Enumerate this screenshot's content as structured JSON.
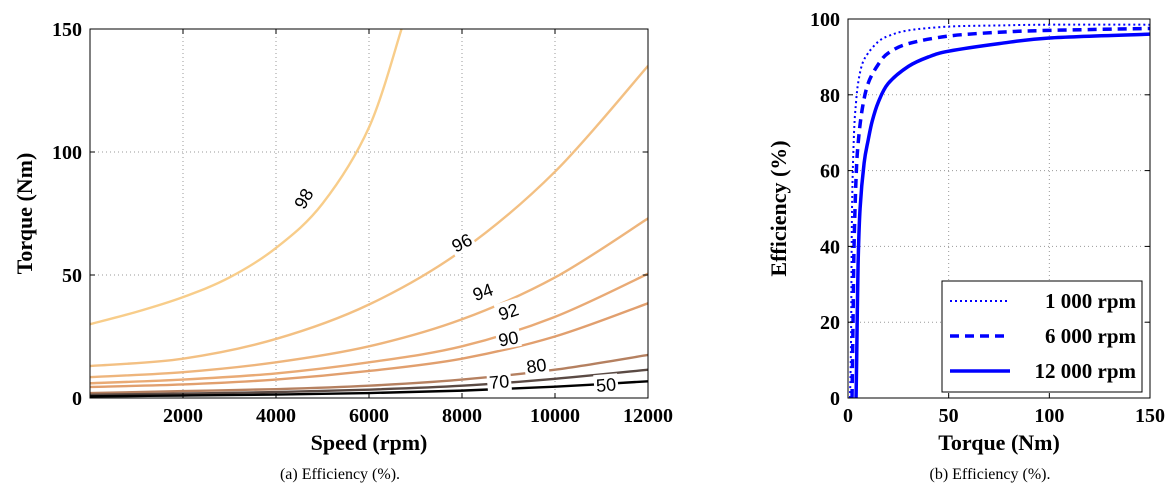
{
  "chart_data": [
    {
      "type": "contour",
      "caption": "(a) Efficiency (%).",
      "xlabel": "Speed (rpm)",
      "ylabel": "Torque (Nm)",
      "xlim": [
        0,
        12000
      ],
      "ylim": [
        0,
        150
      ],
      "xticks": [
        2000,
        4000,
        6000,
        8000,
        10000,
        12000
      ],
      "yticks": [
        0,
        50,
        100,
        150
      ],
      "xtick_labels": [
        "2000",
        "4000",
        "6000",
        "8000",
        "10000",
        "12000"
      ],
      "ytick_labels": [
        "0",
        "50",
        "100",
        "150"
      ],
      "grid": true,
      "levels": [
        {
          "level": "98",
          "color": "#f8cd8a",
          "points": [
            [
              0,
              30
            ],
            [
              1000,
              35
            ],
            [
              2000,
              41
            ],
            [
              3000,
              49
            ],
            [
              4000,
              61
            ],
            [
              5000,
              79
            ],
            [
              6000,
              110
            ],
            [
              6700,
              150
            ]
          ]
        },
        {
          "level": "96",
          "color": "#f3c083",
          "points": [
            [
              0,
              13
            ],
            [
              2000,
              16
            ],
            [
              4000,
              24
            ],
            [
              6000,
              38
            ],
            [
              8000,
              60
            ],
            [
              10000,
              92
            ],
            [
              12000,
              135
            ]
          ]
        },
        {
          "level": "94",
          "color": "#eeb57c",
          "points": [
            [
              0,
              8.5
            ],
            [
              2000,
              10.5
            ],
            [
              4000,
              14.5
            ],
            [
              6000,
              21
            ],
            [
              8000,
              32
            ],
            [
              10000,
              49
            ],
            [
              12000,
              73
            ]
          ]
        },
        {
          "level": "92",
          "color": "#e9aa75",
          "points": [
            [
              0,
              6
            ],
            [
              2000,
              7.5
            ],
            [
              4000,
              10
            ],
            [
              6000,
              14.5
            ],
            [
              8000,
              21
            ],
            [
              10000,
              33
            ],
            [
              12000,
              50.5
            ]
          ]
        },
        {
          "level": "90",
          "color": "#e19f6e",
          "points": [
            [
              0,
              4.5
            ],
            [
              2000,
              5.5
            ],
            [
              4000,
              7.5
            ],
            [
              6000,
              11
            ],
            [
              8000,
              16
            ],
            [
              10000,
              25
            ],
            [
              12000,
              38.5
            ]
          ]
        },
        {
          "level": "80",
          "color": "#b58060",
          "points": [
            [
              0,
              2
            ],
            [
              2000,
              2.8
            ],
            [
              4000,
              3.6
            ],
            [
              6000,
              5
            ],
            [
              8000,
              7.5
            ],
            [
              10000,
              11.5
            ],
            [
              12000,
              17.5
            ]
          ]
        },
        {
          "level": "70",
          "color": "#5a4a44",
          "points": [
            [
              0,
              1.3
            ],
            [
              2000,
              1.8
            ],
            [
              4000,
              2.4
            ],
            [
              6000,
              3.4
            ],
            [
              8000,
              5
            ],
            [
              10000,
              7.8
            ],
            [
              12000,
              11.5
            ]
          ]
        },
        {
          "level": "50",
          "color": "#000000",
          "points": [
            [
              0,
              0.7
            ],
            [
              2000,
              1
            ],
            [
              4000,
              1.4
            ],
            [
              6000,
              2
            ],
            [
              8000,
              3
            ],
            [
              10000,
              4.6
            ],
            [
              12000,
              6.8
            ]
          ]
        }
      ],
      "contour_labels": [
        {
          "text": "98",
          "x": 4600,
          "y": 81,
          "angle": -60
        },
        {
          "text": "96",
          "x": 8000,
          "y": 63,
          "angle": -27
        },
        {
          "text": "94",
          "x": 8450,
          "y": 43,
          "angle": -20
        },
        {
          "text": "92",
          "x": 9000,
          "y": 35,
          "angle": -18
        },
        {
          "text": "90",
          "x": 9000,
          "y": 24,
          "angle": -10
        },
        {
          "text": "80",
          "x": 9600,
          "y": 13,
          "angle": -8
        },
        {
          "text": "70",
          "x": 8800,
          "y": 6.5,
          "angle": -5
        },
        {
          "text": "50",
          "x": 11100,
          "y": 5.2,
          "angle": -5
        }
      ]
    },
    {
      "type": "line",
      "caption": "(b) Efficiency (%).",
      "xlabel": "Torque (Nm)",
      "ylabel": "Efficiency (%)",
      "xlim": [
        0,
        150
      ],
      "ylim": [
        0,
        100
      ],
      "xticks": [
        0,
        50,
        100,
        150
      ],
      "yticks": [
        0,
        20,
        40,
        60,
        80,
        100
      ],
      "xtick_labels": [
        "0",
        "50",
        "100",
        "150"
      ],
      "ytick_labels": [
        "0",
        "20",
        "40",
        "60",
        "80",
        "100"
      ],
      "grid": true,
      "legend_position": "bottom-right",
      "color": "#0000ff",
      "series": [
        {
          "name": "1 000 rpm",
          "style": "dotted",
          "x": [
            1,
            1.5,
            2,
            3,
            4,
            5,
            7,
            10,
            15,
            20,
            30,
            50,
            75,
            100,
            150
          ],
          "y": [
            0,
            15,
            50,
            70,
            78,
            83,
            88,
            91,
            94,
            95.5,
            97,
            98,
            98.3,
            98.5,
            98.5
          ]
        },
        {
          "name": "6 000 rpm",
          "style": "dashed",
          "x": [
            2,
            2.5,
            3,
            4,
            5,
            7,
            10,
            15,
            20,
            30,
            50,
            75,
            100,
            150
          ],
          "y": [
            0,
            20,
            40,
            58,
            67,
            76,
            83,
            88,
            91,
            93.5,
            95.5,
            96.5,
            97,
            97.5
          ]
        },
        {
          "name": "12 000 rpm",
          "style": "solid",
          "x": [
            4,
            4.3,
            5,
            6,
            8,
            10,
            12,
            15,
            20,
            30,
            40,
            50,
            75,
            100,
            150
          ],
          "y": [
            0,
            10,
            35,
            50,
            62,
            68,
            73,
            78,
            83,
            87.5,
            90,
            91.5,
            93.5,
            95,
            96
          ]
        }
      ]
    }
  ]
}
